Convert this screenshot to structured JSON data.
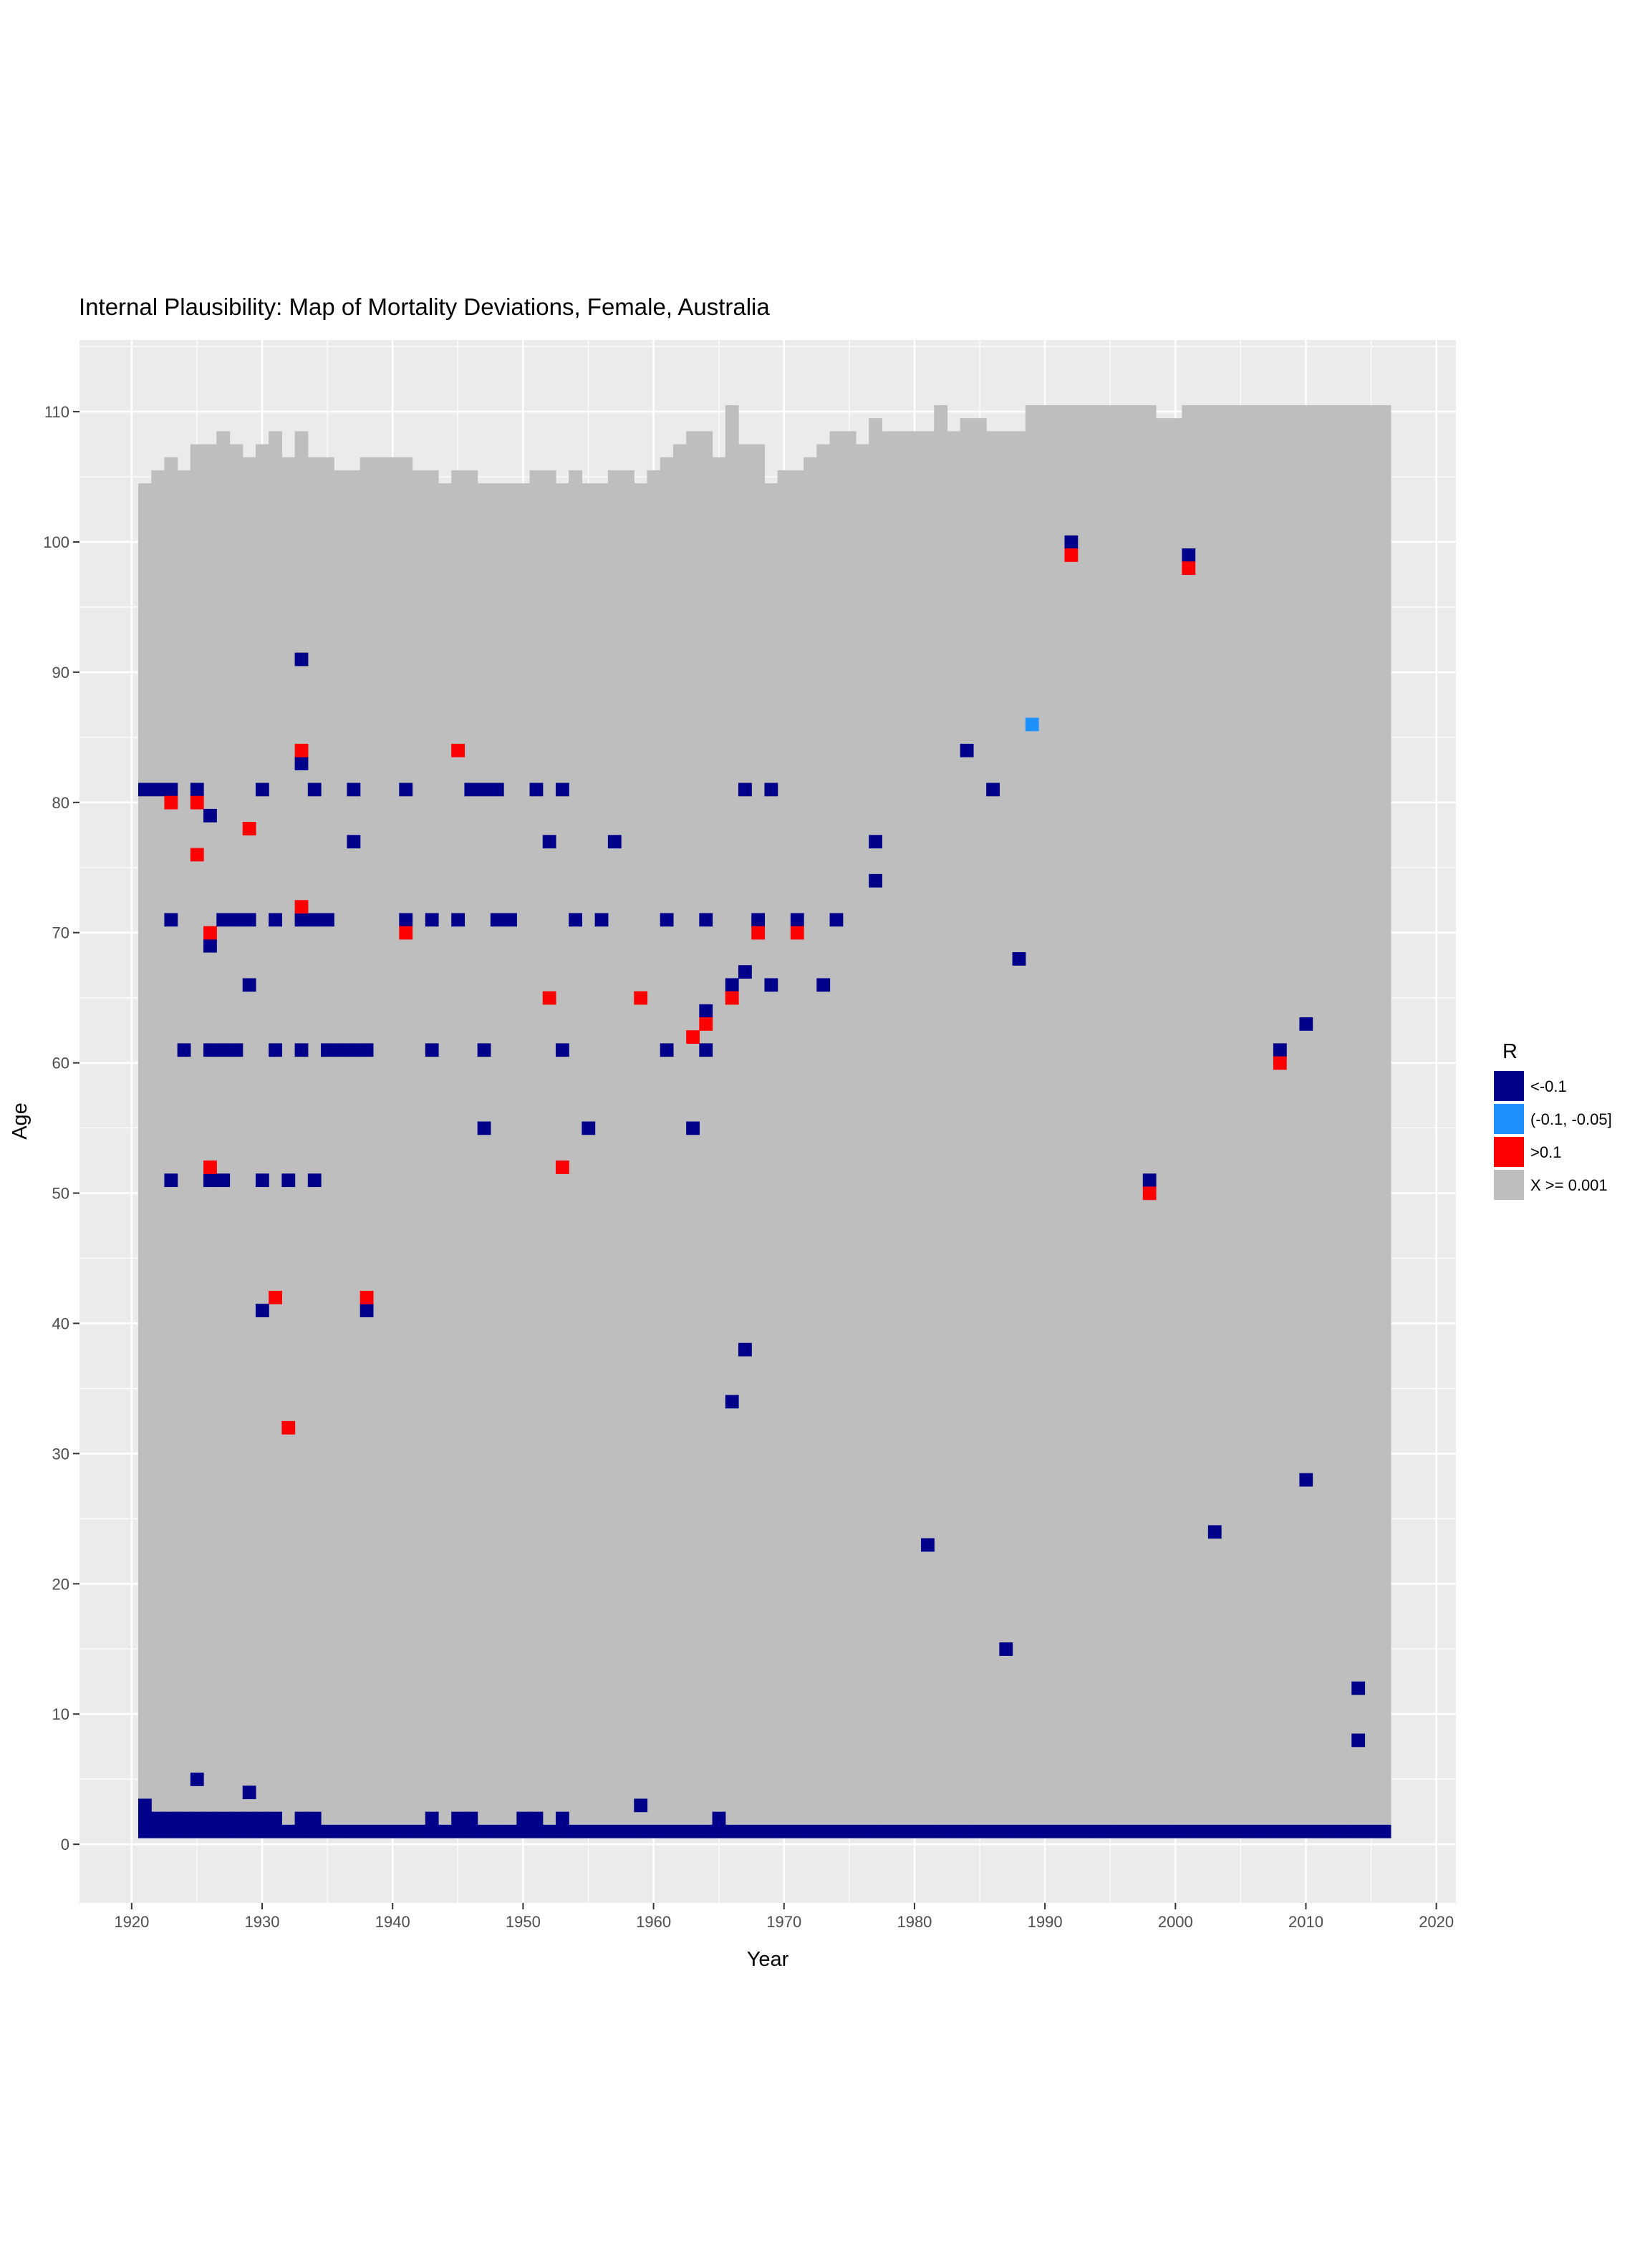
{
  "chart_data": {
    "type": "heatmap",
    "title": "Internal Plausibility: Map of Mortality Deviations, Female, Australia",
    "xlabel": "Year",
    "ylabel": "Age",
    "xlim": [
      1916,
      2021.5
    ],
    "ylim": [
      -4.5,
      115.5
    ],
    "x_ticks": [
      1920,
      1930,
      1940,
      1950,
      1960,
      1970,
      1980,
      1990,
      2000,
      2010,
      2020
    ],
    "y_ticks": [
      0,
      10,
      20,
      30,
      40,
      50,
      60,
      70,
      80,
      90,
      100,
      110
    ],
    "grid": true,
    "legend_position": "right",
    "legend": {
      "title": "R",
      "entries": [
        {
          "key": "low",
          "label": "<-0.1",
          "color": "#00008B"
        },
        {
          "key": "mid",
          "label": "(-0.1, -0.05]",
          "color": "#1E90FF"
        },
        {
          "key": "high",
          "label": ">0.1",
          "color": "#FF0000"
        },
        {
          "key": "ok",
          "label": "X >= 0.001",
          "color": "#BEBEBE"
        }
      ]
    },
    "background_color": "#EBEBEB",
    "grid_color": "#FFFFFF",
    "year_range": [
      1921,
      2016
    ],
    "max_age_by_year": [
      104,
      105,
      106,
      105,
      107,
      107,
      108,
      107,
      106,
      107,
      108,
      106,
      108,
      106,
      106,
      105,
      105,
      106,
      106,
      106,
      106,
      105,
      105,
      104,
      105,
      105,
      104,
      104,
      104,
      104,
      105,
      105,
      104,
      105,
      104,
      104,
      105,
      105,
      104,
      105,
      106,
      107,
      108,
      108,
      106,
      110,
      107,
      107,
      104,
      105,
      105,
      106,
      107,
      108,
      108,
      107,
      109,
      108,
      108,
      108,
      108,
      110,
      108,
      109,
      109,
      108,
      108,
      108,
      110,
      110,
      110,
      110,
      110,
      110,
      110,
      110,
      110,
      110,
      109,
      109,
      110,
      110,
      110,
      110,
      110,
      110,
      110,
      110,
      110,
      110,
      110,
      110,
      110,
      110,
      110,
      110
    ],
    "infant_band": {
      "category": "low",
      "years": [
        1921,
        2016
      ],
      "ages": [
        1,
        1
      ]
    },
    "age2_low_years": [
      1921,
      1922,
      1923,
      1924,
      1925,
      1926,
      1927,
      1928,
      1929,
      1930,
      1931,
      1933,
      1934,
      1943,
      1945,
      1946,
      1950,
      1951,
      1953,
      1965
    ],
    "cells": [
      [
        1921,
        3,
        "low"
      ],
      [
        1925,
        5,
        "low"
      ],
      [
        1929,
        4,
        "low"
      ],
      [
        1959,
        3,
        "low"
      ],
      [
        1933,
        91,
        "low"
      ],
      [
        1992,
        100,
        "low"
      ],
      [
        2001,
        99,
        "low"
      ],
      [
        1989,
        86,
        "mid"
      ],
      [
        1984,
        84,
        "low"
      ],
      [
        1933,
        83,
        "low"
      ],
      [
        1986,
        81,
        "low"
      ],
      [
        1921,
        81,
        "low"
      ],
      [
        1922,
        81,
        "low"
      ],
      [
        1923,
        81,
        "low"
      ],
      [
        1925,
        81,
        "low"
      ],
      [
        1930,
        81,
        "low"
      ],
      [
        1934,
        81,
        "low"
      ],
      [
        1937,
        81,
        "low"
      ],
      [
        1941,
        81,
        "low"
      ],
      [
        1946,
        81,
        "low"
      ],
      [
        1947,
        81,
        "low"
      ],
      [
        1948,
        81,
        "low"
      ],
      [
        1951,
        81,
        "low"
      ],
      [
        1953,
        81,
        "low"
      ],
      [
        1967,
        81,
        "low"
      ],
      [
        1969,
        81,
        "low"
      ],
      [
        1926,
        79,
        "low"
      ],
      [
        1937,
        77,
        "low"
      ],
      [
        1952,
        77,
        "low"
      ],
      [
        1957,
        77,
        "low"
      ],
      [
        1977,
        77,
        "low"
      ],
      [
        1977,
        74,
        "low"
      ],
      [
        1923,
        71,
        "low"
      ],
      [
        1927,
        71,
        "low"
      ],
      [
        1928,
        71,
        "low"
      ],
      [
        1929,
        71,
        "low"
      ],
      [
        1931,
        71,
        "low"
      ],
      [
        1933,
        71,
        "low"
      ],
      [
        1934,
        71,
        "low"
      ],
      [
        1935,
        71,
        "low"
      ],
      [
        1941,
        71,
        "low"
      ],
      [
        1943,
        71,
        "low"
      ],
      [
        1945,
        71,
        "low"
      ],
      [
        1948,
        71,
        "low"
      ],
      [
        1949,
        71,
        "low"
      ],
      [
        1954,
        71,
        "low"
      ],
      [
        1956,
        71,
        "low"
      ],
      [
        1961,
        71,
        "low"
      ],
      [
        1964,
        71,
        "low"
      ],
      [
        1968,
        71,
        "low"
      ],
      [
        1971,
        71,
        "low"
      ],
      [
        1974,
        71,
        "low"
      ],
      [
        1926,
        69,
        "low"
      ],
      [
        1988,
        68,
        "low"
      ],
      [
        1967,
        67,
        "low"
      ],
      [
        1929,
        66,
        "low"
      ],
      [
        1966,
        66,
        "low"
      ],
      [
        1969,
        66,
        "low"
      ],
      [
        1973,
        66,
        "low"
      ],
      [
        1964,
        64,
        "low"
      ],
      [
        2010,
        63,
        "low"
      ],
      [
        1924,
        61,
        "low"
      ],
      [
        1926,
        61,
        "low"
      ],
      [
        1927,
        61,
        "low"
      ],
      [
        1928,
        61,
        "low"
      ],
      [
        1931,
        61,
        "low"
      ],
      [
        1933,
        61,
        "low"
      ],
      [
        1935,
        61,
        "low"
      ],
      [
        1936,
        61,
        "low"
      ],
      [
        1937,
        61,
        "low"
      ],
      [
        1938,
        61,
        "low"
      ],
      [
        1943,
        61,
        "low"
      ],
      [
        1947,
        61,
        "low"
      ],
      [
        1953,
        61,
        "low"
      ],
      [
        1961,
        61,
        "low"
      ],
      [
        1964,
        61,
        "low"
      ],
      [
        2008,
        61,
        "low"
      ],
      [
        1947,
        55,
        "low"
      ],
      [
        1955,
        55,
        "low"
      ],
      [
        1963,
        55,
        "low"
      ],
      [
        1923,
        51,
        "low"
      ],
      [
        1926,
        51,
        "low"
      ],
      [
        1927,
        51,
        "low"
      ],
      [
        1930,
        51,
        "low"
      ],
      [
        1932,
        51,
        "low"
      ],
      [
        1934,
        51,
        "low"
      ],
      [
        1998,
        51,
        "low"
      ],
      [
        1930,
        41,
        "low"
      ],
      [
        1938,
        41,
        "low"
      ],
      [
        1967,
        38,
        "low"
      ],
      [
        1966,
        34,
        "low"
      ],
      [
        2010,
        28,
        "low"
      ],
      [
        2003,
        24,
        "low"
      ],
      [
        1981,
        23,
        "low"
      ],
      [
        1987,
        15,
        "low"
      ],
      [
        2014,
        12,
        "low"
      ],
      [
        2014,
        8,
        "low"
      ],
      [
        1992,
        99,
        "high"
      ],
      [
        2001,
        98,
        "high"
      ],
      [
        1933,
        84,
        "high"
      ],
      [
        1945,
        84,
        "high"
      ],
      [
        1923,
        80,
        "high"
      ],
      [
        1925,
        80,
        "high"
      ],
      [
        1929,
        78,
        "high"
      ],
      [
        1925,
        76,
        "high"
      ],
      [
        1933,
        72,
        "high"
      ],
      [
        1926,
        70,
        "high"
      ],
      [
        1941,
        70,
        "high"
      ],
      [
        1968,
        70,
        "high"
      ],
      [
        1971,
        70,
        "high"
      ],
      [
        1952,
        65,
        "high"
      ],
      [
        1959,
        65,
        "high"
      ],
      [
        1966,
        65,
        "high"
      ],
      [
        1964,
        63,
        "high"
      ],
      [
        1963,
        62,
        "high"
      ],
      [
        2008,
        60,
        "high"
      ],
      [
        1926,
        52,
        "high"
      ],
      [
        1953,
        52,
        "high"
      ],
      [
        1998,
        50,
        "high"
      ],
      [
        1931,
        42,
        "high"
      ],
      [
        1938,
        42,
        "high"
      ],
      [
        1932,
        32,
        "high"
      ]
    ]
  }
}
